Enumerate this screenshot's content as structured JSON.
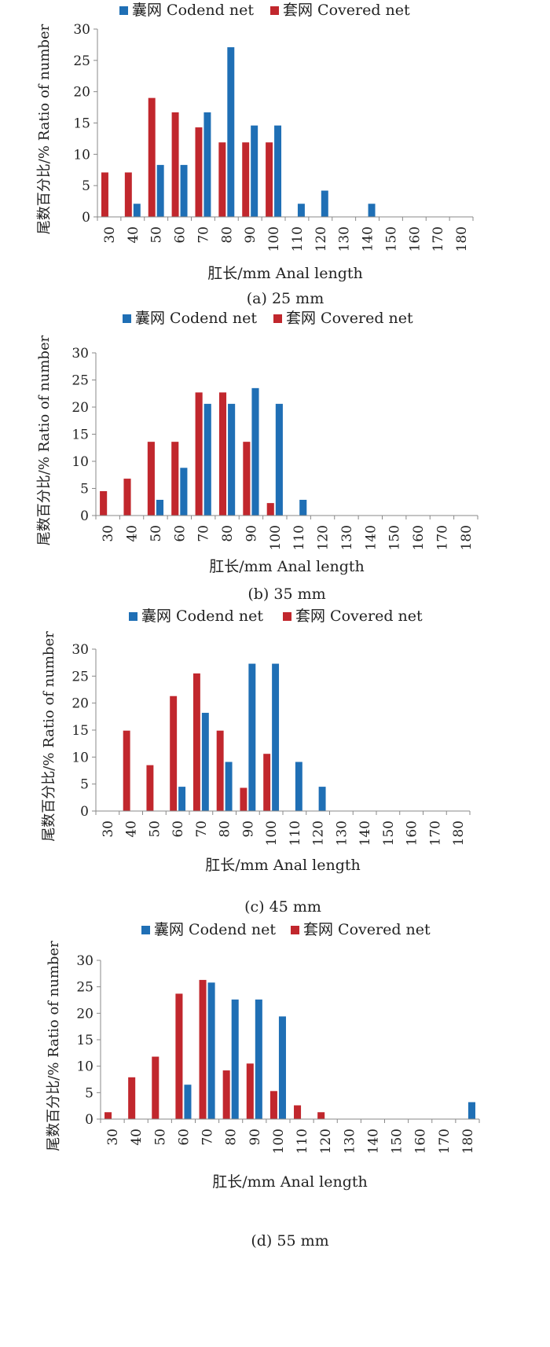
{
  "chart_data": [
    {
      "type": "bar",
      "caption": "(a) 25 mm",
      "xlabel": "肛长/mm Anal length",
      "ylabel": "尾数百分比/% Ratio of number",
      "ylim": [
        0,
        30
      ],
      "yticks": [
        0,
        5,
        10,
        15,
        20,
        25,
        30
      ],
      "categories": [
        "30",
        "40",
        "50",
        "60",
        "70",
        "80",
        "90",
        "100",
        "110",
        "120",
        "130",
        "140",
        "150",
        "160",
        "170",
        "180"
      ],
      "series": [
        {
          "name": "囊网 Codend net",
          "color": "#1f6fb5",
          "values": [
            0,
            2.1,
            8.3,
            8.3,
            16.7,
            27.1,
            14.6,
            14.6,
            2.1,
            4.2,
            0,
            2.1,
            0,
            0,
            0,
            0
          ]
        },
        {
          "name": "套网 Covered net",
          "color": "#c1272d",
          "values": [
            7.1,
            7.1,
            19.0,
            16.7,
            14.3,
            11.9,
            11.9,
            11.9,
            0,
            0,
            0,
            0,
            0,
            0,
            0,
            0
          ]
        }
      ],
      "legend": "top-center"
    },
    {
      "type": "bar",
      "caption": "(b) 35 mm",
      "xlabel": "肛长/mm Anal length",
      "ylabel": "尾数百分比/% Ratio of number",
      "ylim": [
        0,
        30
      ],
      "yticks": [
        0,
        5,
        10,
        15,
        20,
        25,
        30
      ],
      "categories": [
        "30",
        "40",
        "50",
        "60",
        "70",
        "80",
        "90",
        "100",
        "110",
        "120",
        "130",
        "140",
        "150",
        "160",
        "170",
        "180"
      ],
      "series": [
        {
          "name": "囊网 Codend net",
          "color": "#1f6fb5",
          "values": [
            0,
            0,
            2.9,
            8.8,
            20.6,
            20.6,
            23.5,
            20.6,
            2.9,
            0,
            0,
            0,
            0,
            0,
            0,
            0
          ]
        },
        {
          "name": "套网 Covered net",
          "color": "#c1272d",
          "values": [
            4.5,
            6.8,
            13.6,
            13.6,
            22.7,
            22.7,
            13.6,
            2.3,
            0,
            0,
            0,
            0,
            0,
            0,
            0,
            0
          ]
        }
      ],
      "legend": "top-center"
    },
    {
      "type": "bar",
      "caption": "(c) 45 mm",
      "xlabel": "肛长/mm Anal length",
      "ylabel": "尾数百分比/% Ratio of number",
      "ylim": [
        0,
        30
      ],
      "yticks": [
        0,
        5,
        10,
        15,
        20,
        25,
        30
      ],
      "categories": [
        "30",
        "40",
        "50",
        "60",
        "70",
        "80",
        "90",
        "100",
        "110",
        "120",
        "130",
        "140",
        "150",
        "160",
        "170",
        "180"
      ],
      "series": [
        {
          "name": "囊网 Codend net",
          "color": "#1f6fb5",
          "values": [
            0,
            0,
            0,
            4.5,
            18.2,
            9.1,
            27.3,
            27.3,
            9.1,
            4.5,
            0,
            0,
            0,
            0,
            0,
            0
          ]
        },
        {
          "name": "套网 Covered net",
          "color": "#c1272d",
          "values": [
            0,
            14.9,
            8.5,
            21.3,
            25.5,
            14.9,
            4.3,
            10.6,
            0,
            0,
            0,
            0,
            0,
            0,
            0,
            0
          ]
        }
      ],
      "legend": "top-center"
    },
    {
      "type": "bar",
      "caption": "(d) 55 mm",
      "xlabel": "肛长/mm Anal length",
      "ylabel": "尾数百分比/% Ratio of number",
      "ylim": [
        0,
        30
      ],
      "yticks": [
        0,
        5,
        10,
        15,
        20,
        25,
        30
      ],
      "categories": [
        "30",
        "40",
        "50",
        "60",
        "70",
        "80",
        "90",
        "100",
        "110",
        "120",
        "130",
        "140",
        "150",
        "160",
        "170",
        "180"
      ],
      "series": [
        {
          "name": "囊网 Codend net",
          "color": "#1f6fb5",
          "values": [
            0,
            0,
            0,
            6.5,
            25.8,
            22.6,
            22.6,
            19.4,
            0,
            0,
            0,
            0,
            0,
            0,
            0,
            3.2
          ]
        },
        {
          "name": "套网 Covered net",
          "color": "#c1272d",
          "values": [
            1.3,
            7.9,
            11.8,
            23.7,
            26.3,
            9.2,
            10.5,
            5.3,
            2.6,
            1.3,
            0,
            0,
            0,
            0,
            0,
            0
          ]
        }
      ],
      "legend": "top-center"
    }
  ]
}
